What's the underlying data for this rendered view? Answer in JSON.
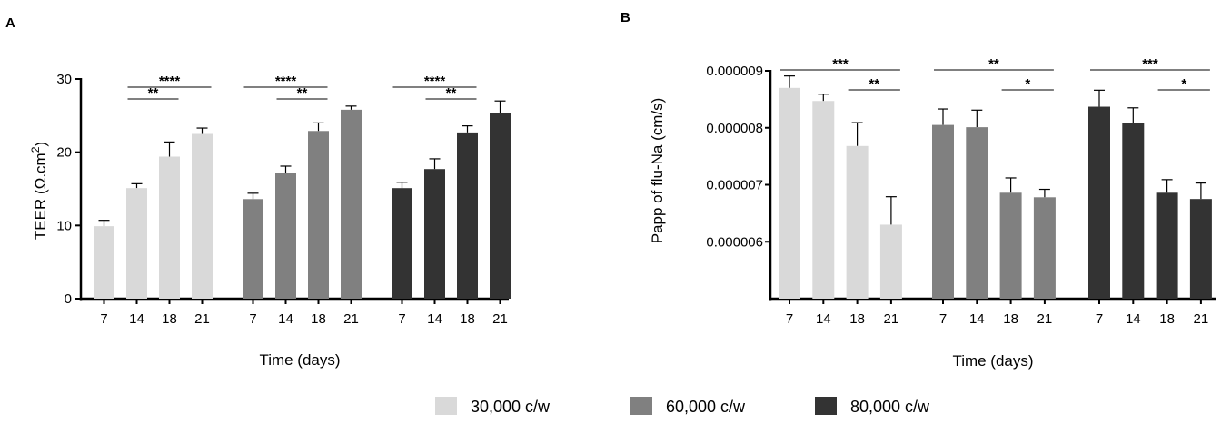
{
  "legend": [
    {
      "label": "30,000 c/w",
      "color": "#d9d9d9"
    },
    {
      "label": "60,000 c/w",
      "color": "#808080"
    },
    {
      "label": "80,000 c/w",
      "color": "#333333"
    }
  ],
  "chart_data": [
    {
      "panel": "A",
      "type": "bar",
      "xlabel": "Time (days)",
      "ylabel_main": "TEER (Ω.cm",
      "ylabel_sup": "2",
      "ylabel_end": ")",
      "ylim": [
        0,
        30
      ],
      "yticks": [
        0,
        10,
        20,
        30
      ],
      "categories": [
        "7",
        "14",
        "18",
        "21"
      ],
      "series": [
        {
          "name": "30,000 c/w",
          "color": "#d9d9d9",
          "values": [
            9.9,
            15.1,
            19.4,
            22.5
          ],
          "errors": [
            0.8,
            0.6,
            2.0,
            0.8
          ]
        },
        {
          "name": "60,000 c/w",
          "color": "#808080",
          "values": [
            13.6,
            17.2,
            22.9,
            25.8
          ],
          "errors": [
            0.8,
            0.9,
            1.1,
            0.5
          ]
        },
        {
          "name": "80,000 c/w",
          "color": "#333333",
          "values": [
            15.1,
            17.7,
            22.7,
            25.3
          ],
          "errors": [
            0.8,
            1.4,
            0.9,
            1.7
          ]
        }
      ],
      "significance": [
        {
          "series": 0,
          "from": 1,
          "to": 3,
          "label": "****",
          "level": 1
        },
        {
          "series": 0,
          "from": 1,
          "to": 2,
          "label": "**",
          "level": 0
        },
        {
          "series": 1,
          "from": 0,
          "to": 2,
          "label": "****",
          "level": 1
        },
        {
          "series": 1,
          "from": 1,
          "to": 2,
          "label": "**",
          "level": 0
        },
        {
          "series": 2,
          "from": 0,
          "to": 2,
          "label": "****",
          "level": 1
        },
        {
          "series": 2,
          "from": 1,
          "to": 2,
          "label": "**",
          "level": 0
        }
      ]
    },
    {
      "panel": "B",
      "type": "bar",
      "xlabel": "Time (days)",
      "ylabel": "Papp of flu-Na (cm/s)",
      "ylim": [
        5e-06,
        9e-06
      ],
      "yticks": [
        6e-06,
        7e-06,
        8e-06,
        9e-06
      ],
      "ytick_labels": [
        "0.000006",
        "0.000007",
        "0.000008",
        "0.000009"
      ],
      "categories": [
        "7",
        "14",
        "18",
        "21"
      ],
      "series": [
        {
          "name": "30,000 c/w",
          "color": "#d9d9d9",
          "values": [
            8.7e-06,
            8.47e-06,
            7.68e-06,
            6.3e-06
          ],
          "errors": [
            2.1e-07,
            1.2e-07,
            4.1e-07,
            4.9e-07
          ]
        },
        {
          "name": "60,000 c/w",
          "color": "#808080",
          "values": [
            8.05e-06,
            8.01e-06,
            6.86e-06,
            6.78e-06
          ],
          "errors": [
            2.8e-07,
            3e-07,
            2.6e-07,
            1.4e-07
          ]
        },
        {
          "name": "80,000 c/w",
          "color": "#333333",
          "values": [
            8.37e-06,
            8.08e-06,
            6.86e-06,
            6.75e-06
          ],
          "errors": [
            2.9e-07,
            2.7e-07,
            2.3e-07,
            2.8e-07
          ]
        }
      ],
      "significance": [
        {
          "series": 0,
          "from": 0,
          "to": 3,
          "label": "***",
          "level": 1
        },
        {
          "series": 0,
          "from": 2,
          "to": 3,
          "label": "**",
          "level": 0
        },
        {
          "series": 1,
          "from": 0,
          "to": 3,
          "label": "**",
          "level": 1
        },
        {
          "series": 1,
          "from": 2,
          "to": 3,
          "label": "*",
          "level": 0
        },
        {
          "series": 2,
          "from": 0,
          "to": 3,
          "label": "***",
          "level": 1
        },
        {
          "series": 2,
          "from": 2,
          "to": 3,
          "label": "*",
          "level": 0
        }
      ]
    }
  ]
}
